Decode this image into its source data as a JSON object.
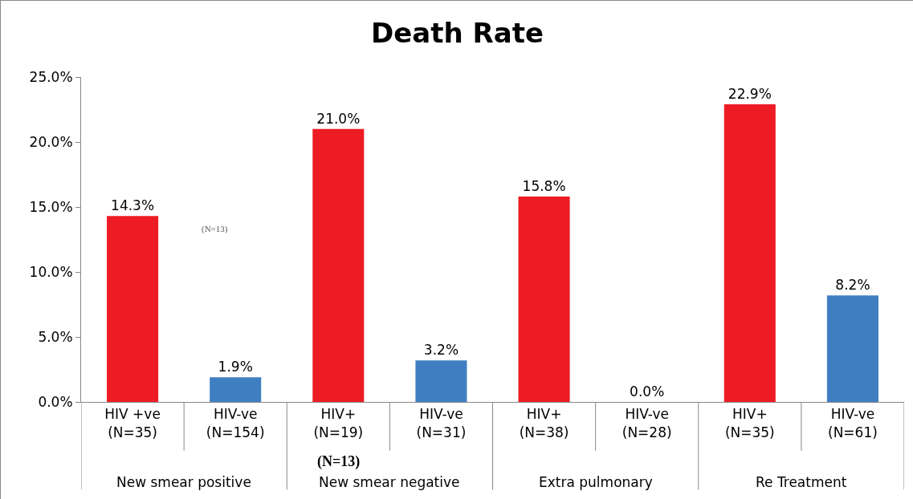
{
  "chart_data": {
    "type": "bar",
    "title": "Death Rate",
    "categories": [
      "HIV +ve\n(N=35)",
      "HIV-ve\n(N=154)",
      "HIV+\n(N=19)",
      "HIV-ve\n(N=31)",
      "HIV+\n(N=38)",
      "HIV-ve\n(N=28)",
      "HIV+\n(N=35)",
      "HIV-ve\n(N=61)"
    ],
    "values": [
      14.3,
      1.9,
      21.0,
      3.2,
      15.8,
      0.0,
      22.9,
      8.2
    ],
    "colors": [
      "#ed1c24",
      "#3f7fc1",
      "#ed1c24",
      "#3f7fc1",
      "#ed1c24",
      "#3f7fc1",
      "#ed1c24",
      "#3f7fc1"
    ],
    "value_labels": [
      "14.3%",
      "1.9%",
      "21.0%",
      "3.2%",
      "15.8%",
      "0.0%",
      "22.9%",
      "8.2%"
    ],
    "ylim": [
      0,
      25
    ],
    "yticks": [
      {
        "value": 0,
        "label": "0.0%"
      },
      {
        "value": 5,
        "label": "5.0%"
      },
      {
        "value": 10,
        "label": "10.0%"
      },
      {
        "value": 15,
        "label": "15.0%"
      },
      {
        "value": 20,
        "label": "20.0%"
      },
      {
        "value": 25,
        "label": "25.0%"
      }
    ],
    "grid": false,
    "legend": false,
    "annotations": [
      "New smear positive",
      "New smear negative",
      "Extra pulmonary",
      "Re Treatment",
      "(N=13)",
      "(N=13)"
    ]
  }
}
